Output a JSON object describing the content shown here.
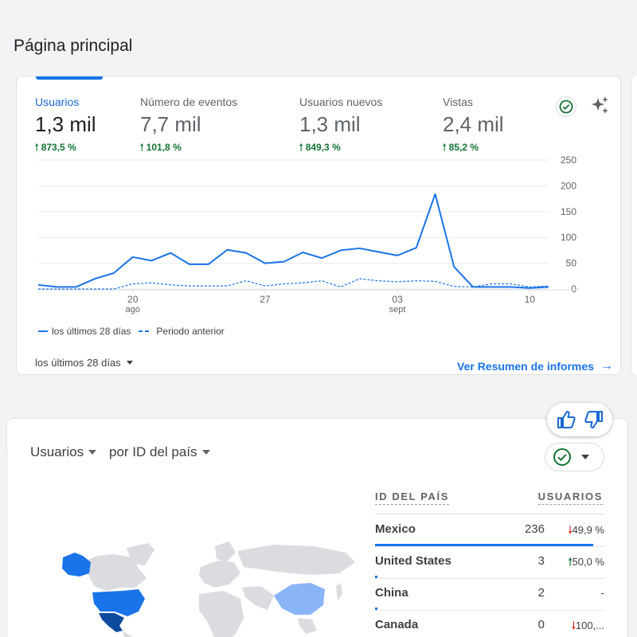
{
  "page": {
    "title": "Página principal"
  },
  "overview": {
    "metrics": [
      {
        "label": "Usuarios",
        "value": "1,3 mil",
        "delta": "873,5 %",
        "direction": "up"
      },
      {
        "label": "Número de eventos",
        "value": "7,7 mil",
        "delta": "101,8 %",
        "direction": "up"
      },
      {
        "label": "Usuarios nuevos",
        "value": "1,3 mil",
        "delta": "849,3 %",
        "direction": "up"
      },
      {
        "label": "Vistas",
        "value": "2,4 mil",
        "delta": "85,2 %",
        "direction": "up"
      }
    ],
    "legend": {
      "current": "los últimos 28 días",
      "previous": "Periodo anterior"
    },
    "range_label": "los últimos 28 días",
    "report_link": "Ver Resumen de informes",
    "colors": {
      "accent": "#1a73e8",
      "positive": "#137333",
      "negative": "#d93025"
    }
  },
  "chart_data": {
    "type": "line",
    "x_ticks": [
      {
        "label": "20",
        "sublabel": "ago",
        "day": 5
      },
      {
        "label": "27",
        "sublabel": "",
        "day": 12
      },
      {
        "label": "03",
        "sublabel": "sept",
        "day": 19
      },
      {
        "label": "10",
        "sublabel": "",
        "day": 26
      }
    ],
    "y_ticks": [
      0,
      50,
      100,
      150,
      200,
      250
    ],
    "ylim": [
      0,
      250
    ],
    "series": [
      {
        "name": "los últimos 28 días",
        "style": "solid",
        "values": [
          8,
          4,
          4,
          20,
          31,
          62,
          55,
          70,
          48,
          48,
          76,
          70,
          50,
          53,
          71,
          60,
          75,
          79,
          72,
          65,
          80,
          184,
          43,
          4,
          4,
          4,
          2,
          4
        ]
      },
      {
        "name": "Periodo anterior",
        "style": "dashed",
        "values": [
          0,
          0,
          0,
          0,
          0,
          10,
          12,
          8,
          6,
          6,
          6,
          16,
          6,
          10,
          12,
          16,
          4,
          20,
          16,
          14,
          16,
          15,
          5,
          4,
          10,
          10,
          4,
          6
        ]
      }
    ],
    "grid": true
  },
  "geo": {
    "metric_label": "Usuarios",
    "dimension_label": "por ID del país",
    "table": {
      "headers": [
        "ID DEL PAÍS",
        "USUARIOS"
      ],
      "rows": [
        {
          "country": "Mexico",
          "users": "236",
          "change": "49,9 %",
          "direction": "down",
          "share": 0.95
        },
        {
          "country": "United States",
          "users": "3",
          "change": "50,0 %",
          "direction": "up",
          "share": 0.012
        },
        {
          "country": "China",
          "users": "2",
          "change": "-",
          "direction": "none",
          "share": 0.008
        },
        {
          "country": "Canada",
          "users": "0",
          "change": "100,...",
          "direction": "down",
          "share": 0
        }
      ]
    }
  },
  "icons": {
    "check": "check-circle-icon",
    "sparkle": "sparkle-icon",
    "thumbs_up": "thumbs-up-icon",
    "thumbs_down": "thumbs-down-icon"
  }
}
